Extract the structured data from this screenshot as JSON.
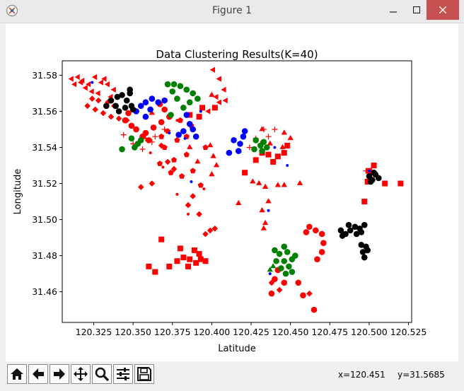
{
  "window": {
    "title": "Figure 1"
  },
  "toolbar": {
    "buttons": [
      "home-icon",
      "back-arrow-icon",
      "forward-arrow-icon",
      "pan-icon",
      "zoom-icon",
      "configure-subplots-icon",
      "save-icon"
    ],
    "coords": {
      "x": "x=120.451",
      "y": "y=31.5685"
    }
  },
  "colors": {
    "red": "#ff0000",
    "blue": "#0000ff",
    "green": "#008000",
    "black": "#000000"
  },
  "chart_data": {
    "type": "scatter",
    "title": "Data Clustering Results(K=40)",
    "xlabel": "Latitude",
    "ylabel": "Longitude",
    "xlim": [
      120.305,
      120.527
    ],
    "ylim": [
      31.443,
      31.588
    ],
    "xticks": [
      120.325,
      120.35,
      120.375,
      120.4,
      120.425,
      120.45,
      120.475,
      120.5,
      120.525
    ],
    "xtick_labels": [
      "120.325",
      "120.350",
      "120.375",
      "120.400",
      "120.425",
      "120.450",
      "120.475",
      "120.500",
      "120.525"
    ],
    "yticks": [
      31.46,
      31.48,
      31.5,
      31.52,
      31.54,
      31.56,
      31.58
    ],
    "ytick_labels": [
      "31.46",
      "31.48",
      "31.50",
      "31.52",
      "31.54",
      "31.56",
      "31.58"
    ],
    "grid": false,
    "clusters": [
      {
        "color": "red",
        "marker": "triangle-left",
        "points": [
          [
            120.315,
            31.579
          ],
          [
            120.318,
            31.577
          ],
          [
            120.322,
            31.575
          ],
          [
            120.32,
            31.573
          ],
          [
            120.326,
            31.579
          ],
          [
            120.33,
            31.576
          ],
          [
            120.334,
            31.575
          ],
          [
            120.338,
            31.572
          ],
          [
            120.313,
            31.575
          ],
          [
            120.328,
            31.57
          ],
          [
            120.336,
            31.568
          ],
          [
            120.324,
            31.571
          ],
          [
            120.317,
            31.576
          ],
          [
            120.332,
            31.578
          ],
          [
            120.401,
            31.583
          ],
          [
            120.405,
            31.578
          ],
          [
            120.408,
            31.572
          ],
          [
            120.403,
            31.568
          ],
          [
            120.409,
            31.566
          ],
          [
            120.398,
            31.56
          ],
          [
            120.405,
            31.565
          ],
          [
            120.311,
            31.578
          ]
        ]
      },
      {
        "color": "red",
        "marker": "diamond",
        "points": [
          [
            120.321,
            31.563
          ],
          [
            120.326,
            31.561
          ],
          [
            120.331,
            31.559
          ],
          [
            120.336,
            31.557
          ],
          [
            120.341,
            31.556
          ],
          [
            120.346,
            31.555
          ],
          [
            120.328,
            31.566
          ],
          [
            120.338,
            31.563
          ],
          [
            120.334,
            31.565
          ],
          [
            120.324,
            31.567
          ],
          [
            120.396,
            31.492
          ],
          [
            120.399,
            31.494
          ],
          [
            120.402,
            31.495
          ],
          [
            120.385,
            31.508
          ],
          [
            120.388,
            31.513
          ],
          [
            120.392,
            31.503
          ],
          [
            120.368,
            31.541
          ],
          [
            120.372,
            31.532
          ],
          [
            120.376,
            31.528
          ],
          [
            120.362,
            31.52
          ],
          [
            120.355,
            31.518
          ],
          [
            120.438,
            31.465
          ],
          [
            120.443,
            31.461
          ],
          [
            120.462,
            31.459
          ]
        ]
      },
      {
        "color": "red",
        "marker": "circle",
        "points": [
          [
            120.352,
            31.55
          ],
          [
            120.356,
            31.546
          ],
          [
            120.36,
            31.544
          ],
          [
            120.349,
            31.552
          ],
          [
            120.345,
            31.555
          ],
          [
            120.358,
            31.548
          ],
          [
            120.363,
            31.551
          ],
          [
            120.368,
            31.554
          ],
          [
            120.373,
            31.557
          ],
          [
            120.37,
            31.561
          ],
          [
            120.367,
            31.564
          ],
          [
            120.347,
            31.559
          ],
          [
            120.462,
            31.496
          ],
          [
            120.466,
            31.494
          ],
          [
            120.47,
            31.492
          ],
          [
            120.471,
            31.487
          ],
          [
            120.47,
            31.482
          ],
          [
            120.467,
            31.478
          ],
          [
            120.46,
            31.493
          ],
          [
            120.442,
            31.472
          ],
          [
            120.44,
            31.467
          ],
          [
            120.446,
            31.465
          ],
          [
            120.438,
            31.459
          ],
          [
            120.455,
            31.465
          ],
          [
            120.458,
            31.458
          ],
          [
            120.465,
            31.45
          ]
        ]
      },
      {
        "color": "red",
        "marker": "square",
        "points": [
          [
            120.373,
            31.474
          ],
          [
            120.378,
            31.477
          ],
          [
            120.382,
            31.479
          ],
          [
            120.386,
            31.478
          ],
          [
            120.39,
            31.476
          ],
          [
            120.392,
            31.481
          ],
          [
            120.389,
            31.483
          ],
          [
            120.38,
            31.484
          ],
          [
            120.385,
            31.474
          ],
          [
            120.393,
            31.478
          ],
          [
            120.396,
            31.477
          ],
          [
            120.36,
            31.474
          ],
          [
            120.364,
            31.471
          ],
          [
            120.368,
            31.489
          ],
          [
            120.386,
            31.558
          ],
          [
            120.394,
            31.562
          ],
          [
            120.392,
            31.557
          ],
          [
            120.421,
            31.526
          ],
          [
            120.428,
            31.533
          ],
          [
            120.432,
            31.537
          ],
          [
            120.436,
            31.536
          ],
          [
            120.442,
            31.535
          ],
          [
            120.446,
            31.537
          ],
          [
            120.439,
            31.532
          ],
          [
            120.448,
            31.541
          ],
          [
            120.51,
            31.52
          ],
          [
            120.497,
            31.51
          ],
          [
            120.52,
            31.52
          ],
          [
            120.5,
            31.527
          ],
          [
            120.503,
            31.53
          ],
          [
            120.499,
            31.521
          ],
          [
            120.402,
            31.562
          ]
        ]
      },
      {
        "color": "red",
        "marker": "triangle-up",
        "points": [
          [
            120.399,
            31.541
          ],
          [
            120.401,
            31.535
          ],
          [
            120.403,
            31.53
          ],
          [
            120.4,
            31.525
          ],
          [
            120.386,
            31.54
          ],
          [
            120.391,
            31.532
          ],
          [
            120.426,
            31.521
          ],
          [
            120.43,
            31.52
          ],
          [
            120.434,
            31.518
          ],
          [
            120.436,
            31.51
          ],
          [
            120.432,
            31.505
          ],
          [
            120.434,
            31.498
          ],
          [
            120.433,
            31.495
          ],
          [
            120.442,
            31.519
          ],
          [
            120.446,
            31.519
          ],
          [
            120.446,
            31.548
          ],
          [
            120.45,
            31.545
          ],
          [
            120.417,
            31.509
          ],
          [
            120.432,
            31.55
          ],
          [
            120.456,
            31.52
          ],
          [
            120.4,
            31.569
          ],
          [
            120.445,
            31.54
          ],
          [
            120.362,
            31.559
          ],
          [
            120.437,
            31.542
          ]
        ]
      },
      {
        "color": "red",
        "marker": "pentagon",
        "points": [
          [
            120.368,
            31.546
          ],
          [
            120.372,
            31.549
          ],
          [
            120.378,
            31.544
          ],
          [
            120.384,
            31.536
          ],
          [
            120.388,
            31.527
          ],
          [
            120.393,
            31.519
          ],
          [
            120.381,
            31.524
          ],
          [
            120.374,
            31.526
          ],
          [
            120.367,
            31.531
          ],
          [
            120.376,
            31.533
          ],
          [
            120.396,
            31.54
          ],
          [
            120.387,
            31.552
          ],
          [
            120.38,
            31.555
          ],
          [
            120.37,
            31.54
          ],
          [
            120.384,
            31.546
          ]
        ]
      },
      {
        "color": "red",
        "marker": "plus",
        "points": [
          [
            120.35,
            31.542
          ],
          [
            120.358,
            31.545
          ],
          [
            120.362,
            31.543
          ],
          [
            120.364,
            31.546
          ],
          [
            120.356,
            31.539
          ],
          [
            120.428,
            31.545
          ],
          [
            120.433,
            31.55
          ],
          [
            120.436,
            31.546
          ],
          [
            120.44,
            31.55
          ],
          [
            120.424,
            31.54
          ],
          [
            120.431,
            31.542
          ],
          [
            120.498,
            31.527
          ],
          [
            120.502,
            31.526
          ],
          [
            120.37,
            31.55
          ],
          [
            120.344,
            31.547
          ]
        ]
      },
      {
        "color": "red",
        "marker": "dot",
        "points": [
          [
            120.361,
            31.537
          ],
          [
            120.369,
            31.529
          ],
          [
            120.378,
            31.514
          ],
          [
            120.385,
            31.503
          ],
          [
            120.395,
            31.517
          ],
          [
            120.378,
            31.555
          ]
        ]
      },
      {
        "color": "blue",
        "marker": "circle",
        "points": [
          [
            120.355,
            31.563
          ],
          [
            120.358,
            31.565
          ],
          [
            120.362,
            31.567
          ],
          [
            120.352,
            31.56
          ],
          [
            120.358,
            31.557
          ],
          [
            120.366,
            31.565
          ],
          [
            120.37,
            31.566
          ],
          [
            120.361,
            31.561
          ],
          [
            120.384,
            31.558
          ],
          [
            120.386,
            31.553
          ],
          [
            120.382,
            31.549
          ],
          [
            120.379,
            31.547
          ],
          [
            120.388,
            31.55
          ],
          [
            120.414,
            31.544
          ],
          [
            120.418,
            31.542
          ],
          [
            120.42,
            31.546
          ],
          [
            120.417,
            31.538
          ],
          [
            120.421,
            31.549
          ],
          [
            120.411,
            31.537
          ],
          [
            120.39,
            31.546
          ]
        ]
      },
      {
        "color": "blue",
        "marker": "dot",
        "points": [
          [
            120.324,
            31.576
          ],
          [
            120.373,
            31.548
          ],
          [
            120.383,
            31.545
          ],
          [
            120.393,
            31.56
          ],
          [
            120.42,
            31.546
          ],
          [
            120.437,
            31.47
          ],
          [
            120.436,
            31.505
          ],
          [
            120.448,
            31.53
          ],
          [
            120.44,
            31.54
          ],
          [
            120.387,
            31.521
          ],
          [
            120.5,
            31.527
          ]
        ]
      },
      {
        "color": "green",
        "marker": "circle",
        "points": [
          [
            120.372,
            31.575
          ],
          [
            120.376,
            31.575
          ],
          [
            120.38,
            31.574
          ],
          [
            120.384,
            31.572
          ],
          [
            120.388,
            31.57
          ],
          [
            120.391,
            31.567
          ],
          [
            120.386,
            31.565
          ],
          [
            120.378,
            31.567
          ],
          [
            120.375,
            31.571
          ],
          [
            120.382,
            31.562
          ],
          [
            120.374,
            31.558
          ],
          [
            120.351,
            31.54
          ],
          [
            120.353,
            31.542
          ],
          [
            120.355,
            31.544
          ],
          [
            120.349,
            31.545
          ],
          [
            120.343,
            31.539
          ],
          [
            120.428,
            31.544
          ],
          [
            120.431,
            31.541
          ],
          [
            120.435,
            31.54
          ],
          [
            120.433,
            31.543
          ],
          [
            120.427,
            31.539
          ],
          [
            120.432,
            31.538
          ],
          [
            120.446,
            31.485
          ],
          [
            120.448,
            31.482
          ],
          [
            120.451,
            31.478
          ],
          [
            120.449,
            31.474
          ],
          [
            120.446,
            31.477
          ],
          [
            120.443,
            31.481
          ],
          [
            120.441,
            31.477
          ],
          [
            120.444,
            31.473
          ],
          [
            120.447,
            31.47
          ],
          [
            120.451,
            31.471
          ],
          [
            120.44,
            31.483
          ],
          [
            120.453,
            31.48
          ]
        ]
      },
      {
        "color": "green",
        "marker": "triangle-up",
        "points": [
          [
            120.439,
            31.474
          ],
          [
            120.437,
            31.472
          ]
        ]
      },
      {
        "color": "black",
        "marker": "circle",
        "points": [
          [
            120.333,
            31.563
          ],
          [
            120.336,
            31.566
          ],
          [
            120.34,
            31.568
          ],
          [
            120.343,
            31.569
          ],
          [
            120.346,
            31.566
          ],
          [
            120.349,
            31.563
          ],
          [
            120.345,
            31.562
          ],
          [
            120.341,
            31.56
          ],
          [
            120.339,
            31.563
          ],
          [
            120.348,
            31.57
          ],
          [
            120.35,
            31.561
          ],
          [
            120.348,
            31.572
          ],
          [
            120.482,
            31.494
          ],
          [
            120.485,
            31.492
          ],
          [
            120.488,
            31.494
          ],
          [
            120.491,
            31.496
          ],
          [
            120.494,
            31.495
          ],
          [
            120.497,
            31.497
          ],
          [
            120.495,
            31.493
          ],
          [
            120.492,
            31.492
          ],
          [
            120.495,
            31.486
          ],
          [
            120.498,
            31.485
          ],
          [
            120.496,
            31.482
          ],
          [
            120.499,
            31.483
          ],
          [
            120.497,
            31.479
          ],
          [
            120.483,
            31.491
          ],
          [
            120.487,
            31.497
          ],
          [
            120.5,
            31.524
          ],
          [
            120.502,
            31.522
          ],
          [
            120.504,
            31.525
          ],
          [
            120.506,
            31.523
          ],
          [
            120.501,
            31.521
          ],
          [
            120.503,
            31.526
          ]
        ]
      }
    ]
  }
}
